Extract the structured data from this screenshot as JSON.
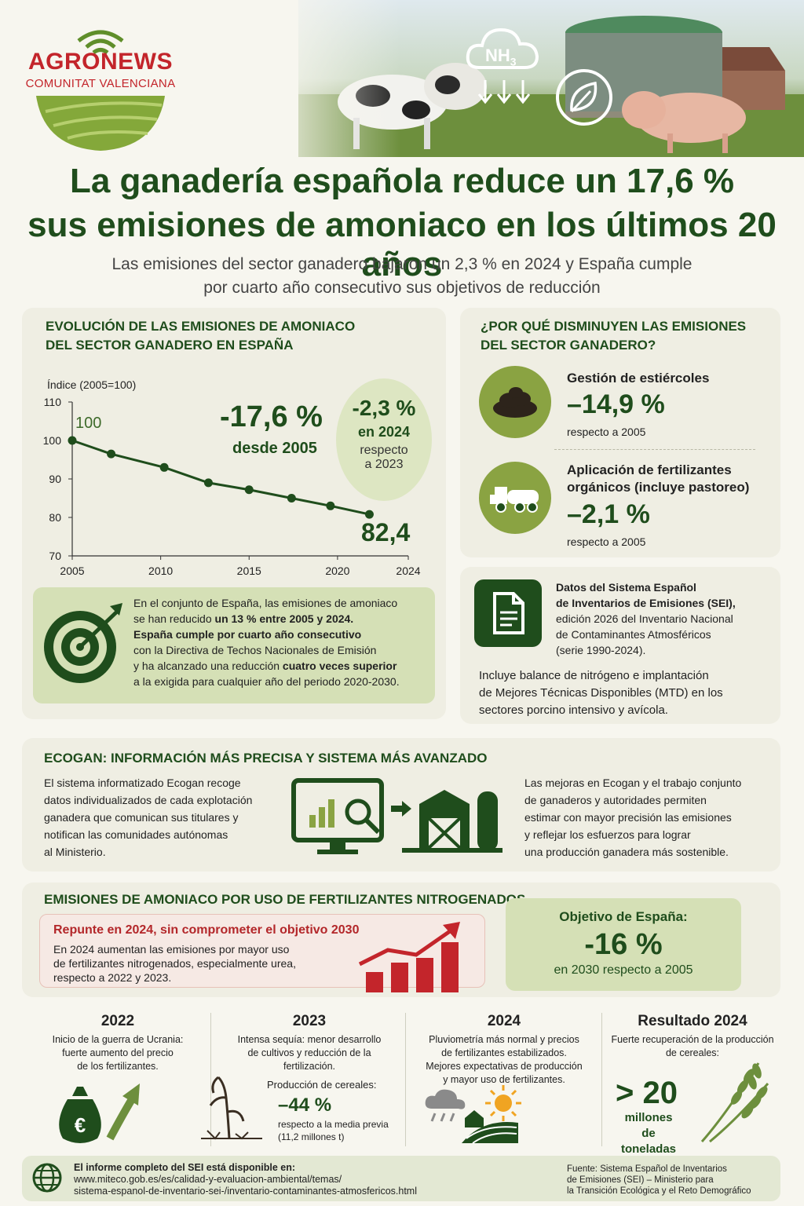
{
  "brand": {
    "name": "AGRONEWS",
    "region": "COMUNITAT VALENCIANA"
  },
  "hero": {
    "chemical": "NH",
    "subscript": "3"
  },
  "headline": {
    "line1": "La ganadería española reduce un 17,6 %",
    "line2": "sus emisiones de amoniaco en los últimos 20 años"
  },
  "subtitle": {
    "line1": "Las emisiones del sector ganadero bajaron un 2,3 % en 2024 y España cumple",
    "line2": "por cuarto año consecutivo sus objetivos de reducción"
  },
  "evolution": {
    "title_line1": "EVOLUCIÓN DE LAS EMISIONES DE AMONIACO",
    "title_line2": "DEL SECTOR GANADERO EN ESPAÑA",
    "big_value": "-17,6 %",
    "big_caption": "desde 2005",
    "bubble_value": "-2,3 %",
    "bubble_line1": "en 2024",
    "bubble_line2": "respecto",
    "bubble_line3": "a 2023",
    "start_label": "100",
    "end_label": "82,4",
    "box_line1": "En el conjunto de España, las emisiones de amoniaco",
    "box_line2a": "se han reducido ",
    "box_line2b": "un 13 % entre 2005 y 2024.",
    "box_line3": "España cumple por cuarto año consecutivo",
    "box_line4": "con la Directiva de Techos Nacionales de Emisión",
    "box_line5a": "y ha alcanzado una reducción ",
    "box_line5b": "cuatro veces superior",
    "box_line6": "a la exigida para cualquier año del periodo 2020-2030."
  },
  "chart_data": {
    "type": "line",
    "ylabel": "Índice (2005=100)",
    "ylim": [
      70,
      110
    ],
    "yticks": [
      110,
      100,
      90,
      80,
      70
    ],
    "xlim": [
      2005,
      2024
    ],
    "xticks": [
      2005,
      2010,
      2015,
      2020,
      2024
    ],
    "x": [
      2005,
      2007.2,
      2010.2,
      2012.7,
      2015,
      2017.4,
      2019.6,
      2021.8
    ],
    "y": [
      100,
      96.5,
      93,
      89,
      87.2,
      85,
      83,
      80.8
    ],
    "grid": false,
    "legend": "none"
  },
  "why": {
    "title_line1": "¿POR QUÉ DISMINUYEN LAS EMISIONES",
    "title_line2": "DEL SECTOR GANADERO?",
    "item1_title": "Gestión de estiércoles",
    "item1_value": "–14,9 %",
    "item1_caption": "respecto a 2005",
    "item2_title_line1": "Aplicación de fertilizantes",
    "item2_title_line2": "orgánicos (incluye pastoreo)",
    "item2_value": "–2,1 %",
    "item2_caption": "respecto a 2005"
  },
  "sei": {
    "l1": "Datos del Sistema Español",
    "l2": "de Inventarios de Emisiones (SEI),",
    "l3": "edición 2026 del Inventario Nacional",
    "l4": "de Contaminantes Atmosféricos",
    "l5": "(serie 1990-2024).",
    "p1": "Incluye balance de nitrógeno e implantación",
    "p2": "de Mejores Técnicas Disponibles (MTD) en los",
    "p3": "sectores porcino intensivo y avícola."
  },
  "ecogan": {
    "title": "ECOGAN: INFORMACIÓN MÁS PRECISA Y SISTEMA MÁS AVANZADO",
    "left": [
      "El sistema informatizado Ecogan recoge",
      "datos individualizados de cada explotación",
      "ganadera que comunican sus titulares y",
      "notifican las comunidades autónomas",
      "al Ministerio."
    ],
    "right": [
      "Las mejoras en Ecogan y el trabajo conjunto",
      "de ganaderos y autoridades permiten",
      "estimar con mayor precisión las emisiones",
      "y reflejar los esfuerzos para lograr",
      "una producción ganadera más sostenible."
    ]
  },
  "fert": {
    "title": "EMISIONES DE AMONIACO POR USO DE FERTILIZANTES NITROGENADOS",
    "alert_title": "Repunte en 2024, sin comprometer el objetivo 2030",
    "alert_lines": [
      "En 2024 aumentan las emisiones por mayor uso",
      "de fertilizantes nitrogenados, especialmente urea,",
      "respecto a 2022 y 2023."
    ],
    "goal_title": "Objetivo de España:",
    "goal_value": "-16 %",
    "goal_caption": "en 2030 respecto a 2005"
  },
  "timeline": {
    "c1": {
      "year": "2022",
      "lines": [
        "Inicio de la guerra de Ucrania:",
        "fuerte aumento del precio",
        "de los fertilizantes."
      ]
    },
    "c2": {
      "year": "2023",
      "lines": [
        "Intensa sequía: menor desarrollo",
        "de cultivos y reducción de la",
        "fertilización."
      ],
      "prod_label": "Producción de cereales:",
      "prod_value": "–44 %",
      "prod_c1": "respecto a la media previa",
      "prod_c2": "(11,2 millones t)"
    },
    "c3": {
      "year": "2024",
      "lines": [
        "Pluviometría más normal y precios",
        "de fertilizantes estabilizados.",
        "Mejores expectativas de producción",
        "y mayor uso de fertilizantes."
      ]
    },
    "c4": {
      "year": "Resultado 2024",
      "lines": [
        "Fuerte recuperación de la producción",
        "de cereales:"
      ],
      "value": "> 20",
      "unit1": "millones de",
      "unit2": "toneladas"
    }
  },
  "footer": {
    "label": "El informe completo del SEI está disponible en:",
    "url1": "www.miteco.gob.es/es/calidad-y-evaluacion-ambiental/temas/",
    "url2": "sistema-espanol-de-inventario-sei-/inventario-contaminantes-atmosfericos.html",
    "source1": "Fuente: Sistema Español de Inventarios",
    "source2": "de Emisiones (SEI) – Ministerio para",
    "source3": "la Transición Ecológica y el Reto Demográfico"
  },
  "colors": {
    "dark_green": "#1f4d1c",
    "olive": "#8aa342",
    "red": "#c3252b"
  }
}
